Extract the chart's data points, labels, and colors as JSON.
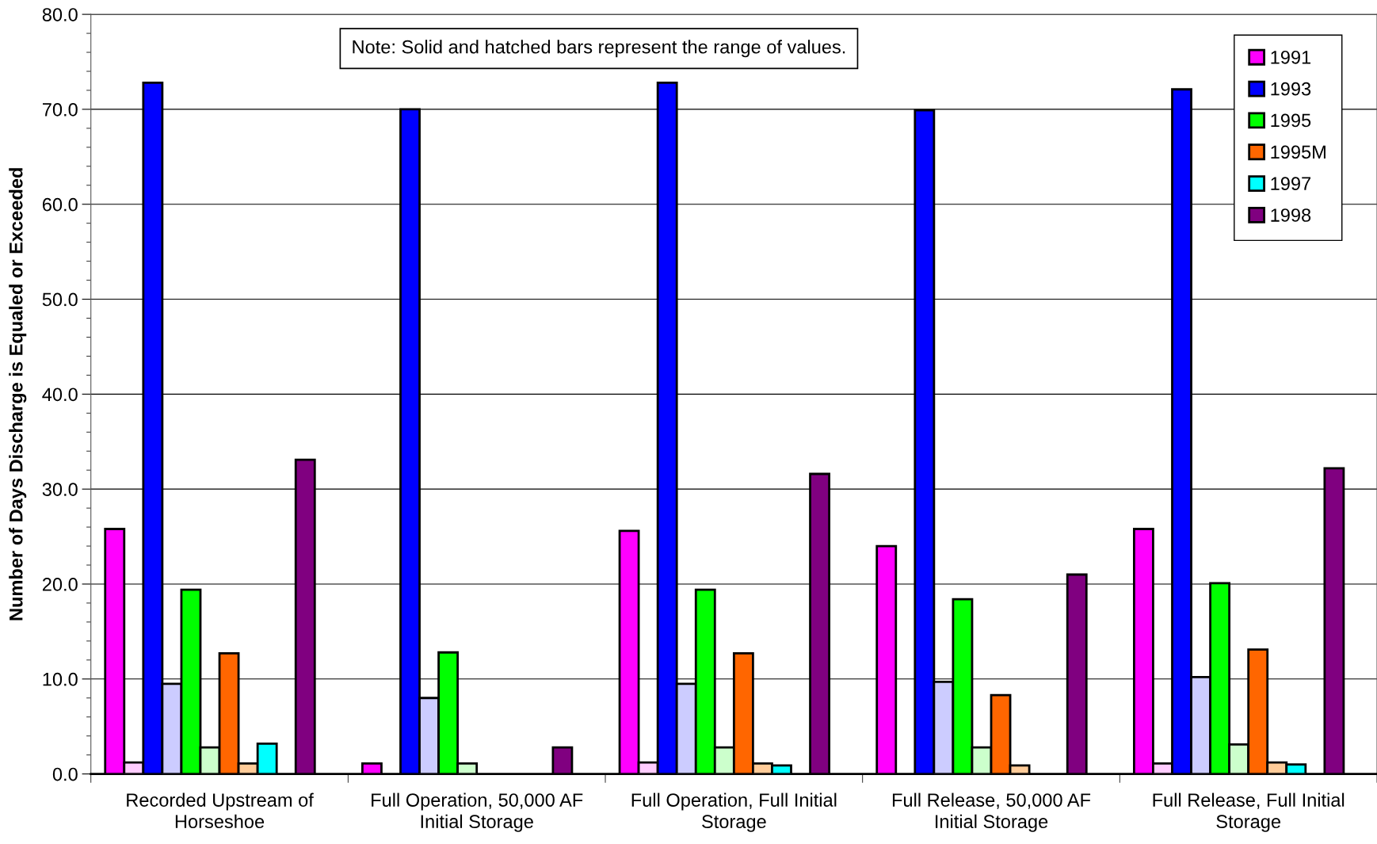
{
  "chart_data": {
    "type": "bar",
    "ylabel": "Number of Days Discharge is Equaled or Exceeded",
    "categories": [
      "Recorded Upstream of Horseshoe",
      "Full Operation, 50,000 AF Initial Storage",
      "Full Operation, Full Initial Storage",
      "Full Release, 50,000 AF Initial Storage",
      "Full Release, Full Initial Storage"
    ],
    "series": [
      {
        "name": "1991",
        "color": "#ff00ff",
        "values": [
          25.8,
          1.1,
          25.6,
          24.0,
          25.8
        ]
      },
      {
        "color": "#ffccff",
        "values": [
          1.2,
          null,
          1.2,
          null,
          1.1
        ]
      },
      {
        "name": "1993",
        "color": "#0000ff",
        "values": [
          72.8,
          70.0,
          72.8,
          69.9,
          72.1
        ]
      },
      {
        "color": "#ccccff",
        "values": [
          9.5,
          8.0,
          9.5,
          9.7,
          10.2
        ]
      },
      {
        "name": "1995",
        "color": "#00ff00",
        "values": [
          19.4,
          12.8,
          19.4,
          18.4,
          20.1
        ]
      },
      {
        "color": "#ccffcc",
        "values": [
          2.8,
          1.1,
          2.8,
          2.8,
          3.1
        ]
      },
      {
        "name": "1995M",
        "color": "#ff6600",
        "values": [
          12.7,
          null,
          12.7,
          8.3,
          13.1
        ]
      },
      {
        "color": "#ffcc99",
        "values": [
          1.1,
          null,
          1.1,
          0.9,
          1.2
        ]
      },
      {
        "name": "1997",
        "color": "#00ffff",
        "values": [
          3.2,
          null,
          0.9,
          null,
          1.0
        ]
      },
      {
        "values": [
          null,
          null,
          null,
          null,
          null
        ]
      },
      {
        "name": "1998",
        "color": "#800080",
        "values": [
          33.1,
          2.8,
          31.6,
          21.0,
          32.2
        ]
      },
      {
        "values": [
          null,
          null,
          null,
          null,
          null
        ]
      }
    ],
    "ylim": [
      0,
      80
    ],
    "yticks": [
      {
        "value": 0,
        "label": "0.0"
      },
      {
        "value": 2,
        "label": null
      },
      {
        "value": 4,
        "label": null
      },
      {
        "value": 6,
        "label": null
      },
      {
        "value": 8,
        "label": null
      },
      {
        "value": 10,
        "label": "10.0"
      },
      {
        "value": 12,
        "label": null
      },
      {
        "value": 14,
        "label": null
      },
      {
        "value": 16,
        "label": null
      },
      {
        "value": 18,
        "label": null
      },
      {
        "value": 20,
        "label": "20.0"
      },
      {
        "value": 22,
        "label": null
      },
      {
        "value": 24,
        "label": null
      },
      {
        "value": 26,
        "label": null
      },
      {
        "value": 28,
        "label": null
      },
      {
        "value": 30,
        "label": "30.0"
      },
      {
        "value": 32,
        "label": null
      },
      {
        "value": 34,
        "label": null
      },
      {
        "value": 36,
        "label": null
      },
      {
        "value": 38,
        "label": null
      },
      {
        "value": 40,
        "label": "40.0"
      },
      {
        "value": 42,
        "label": null
      },
      {
        "value": 44,
        "label": null
      },
      {
        "value": 46,
        "label": null
      },
      {
        "value": 48,
        "label": null
      },
      {
        "value": 50,
        "label": "50.0"
      },
      {
        "value": 52,
        "label": null
      },
      {
        "value": 54,
        "label": null
      },
      {
        "value": 56,
        "label": null
      },
      {
        "value": 58,
        "label": null
      },
      {
        "value": 60,
        "label": "60.0"
      },
      {
        "value": 62,
        "label": null
      },
      {
        "value": 64,
        "label": null
      },
      {
        "value": 66,
        "label": null
      },
      {
        "value": 68,
        "label": null
      },
      {
        "value": 70,
        "label": "70.0"
      },
      {
        "value": 72,
        "label": null
      },
      {
        "value": 74,
        "label": null
      },
      {
        "value": 76,
        "label": null
      },
      {
        "value": 78,
        "label": null
      },
      {
        "value": 80,
        "label": "80.0"
      }
    ],
    "grid": "y",
    "legend": "top right",
    "annotations": [
      "Note: Solid and hatched bars represent the range of values."
    ]
  }
}
